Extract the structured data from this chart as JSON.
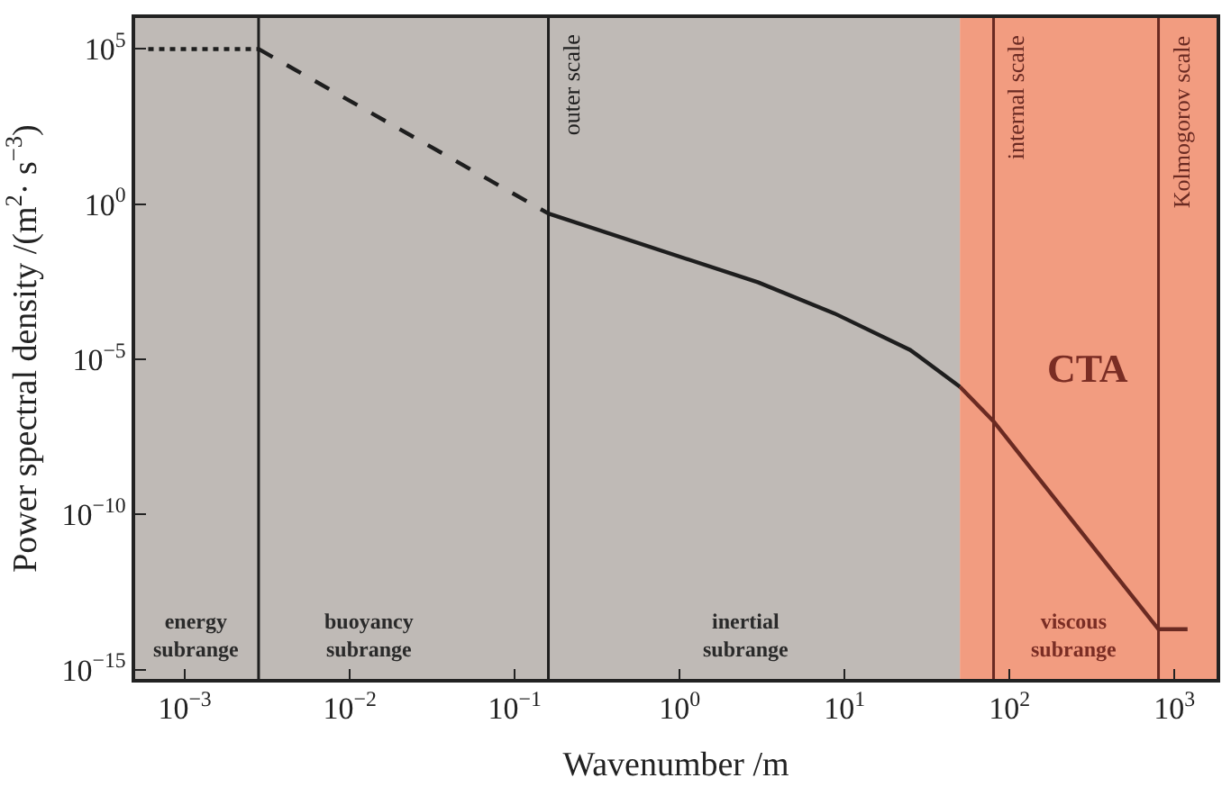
{
  "chart_data": {
    "type": "line",
    "xlabel": "Wavenumber /m",
    "ylabel": "Power spectral density /(m$^{2}$· s$^{−3}$)",
    "log": "xy",
    "grid": false,
    "marker": "none",
    "xlim": [
      0.0005,
      1800
    ],
    "ylim": [
      5e-16,
      1000000.0
    ],
    "xticks": [
      {
        "value": 0.001,
        "label": "10$^{−3}$"
      },
      {
        "value": 0.01,
        "label": "10$^{−2}$"
      },
      {
        "value": 0.1,
        "label": "10$^{−1}$"
      },
      {
        "value": 1,
        "label": "10$^{0}$"
      },
      {
        "value": 10,
        "label": "10$^{1}$"
      },
      {
        "value": 100,
        "label": "10$^{2}$"
      },
      {
        "value": 1000,
        "label": "10$^{3}$"
      }
    ],
    "yticks": [
      {
        "value": 1e-15,
        "label": "10$^{−15}$"
      },
      {
        "value": 1e-10,
        "label": "10$^{−10}$"
      },
      {
        "value": 1e-05,
        "label": "10$^{−5}$"
      },
      {
        "value": 1,
        "label": "10$^{0}$"
      },
      {
        "value": 100000,
        "label": "10$^{5}$"
      }
    ],
    "series": [
      {
        "color": "#1e1e1e",
        "line_style": "dotted",
        "x": [
          0.0006,
          0.0028
        ],
        "values": [
          100000,
          100000
        ]
      },
      {
        "color": "#1e1e1e",
        "line_style": "dashed",
        "x": [
          0.0028,
          0.16
        ],
        "values": [
          100000,
          0.5
        ]
      },
      {
        "color": "#1e1e1e",
        "line_style": "solid",
        "x": [
          0.16,
          3,
          8.7,
          25,
          50
        ],
        "values": [
          0.5,
          0.003,
          0.0003,
          2e-05,
          1.3e-06
        ]
      },
      {
        "color": "#6a2a22",
        "line_style": "solid",
        "x": [
          50,
          80,
          800,
          800,
          1200
        ],
        "values": [
          1.3e-06,
          1e-07,
          2e-14,
          2e-14,
          2e-14
        ]
      }
    ],
    "bands": [
      {
        "axis": "x",
        "from": 0.0005,
        "to": 50,
        "color": "#bfbab6"
      },
      {
        "axis": "x",
        "from": 50,
        "to": 1800,
        "color": "#f29c80",
        "label": "CTA"
      }
    ],
    "ref_lines": [
      {
        "axis": "x",
        "value": 0.0028,
        "color": "#1e1e1e"
      },
      {
        "axis": "x",
        "value": 0.16,
        "color": "#1e1e1e",
        "label": "outer scale"
      },
      {
        "axis": "x",
        "value": 80,
        "color": "#6a2a22",
        "label": "internal scale"
      },
      {
        "axis": "x",
        "value": 800,
        "color": "#6a2a22",
        "label": "Kolmogorov scale"
      }
    ],
    "annotations": [
      "energy\nsubrange",
      "buoyancy\nsubrange",
      "inertial\nsubrange",
      "viscous\nsubrange"
    ]
  }
}
